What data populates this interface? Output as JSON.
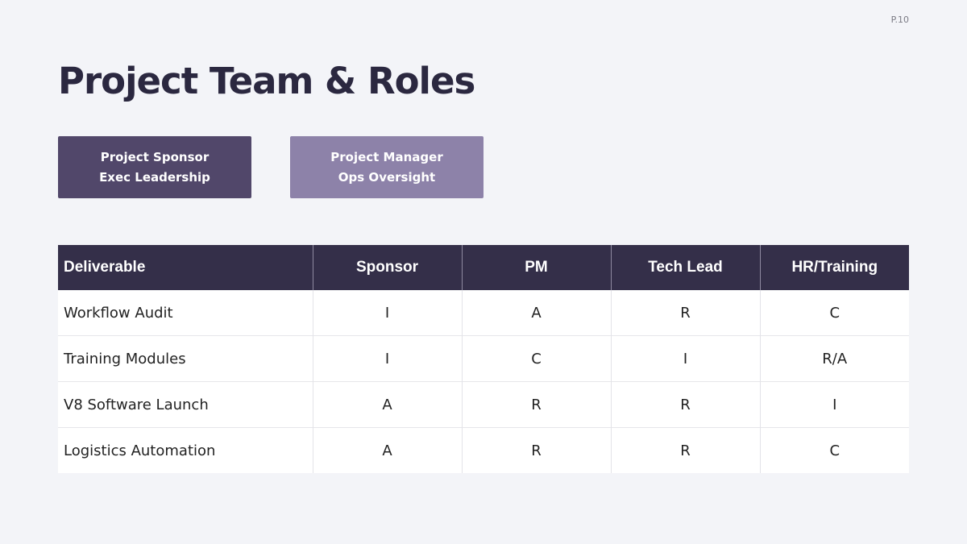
{
  "slide": {
    "page_number": "P.10",
    "title": "Project Team & Roles"
  },
  "roles": [
    {
      "line1": "Project Sponsor",
      "line2": "Exec Leadership",
      "color": "#51476a"
    },
    {
      "line1": "Project Manager",
      "line2": "Ops Oversight",
      "color": "#8d82a9"
    }
  ],
  "table": {
    "headers": [
      "Deliverable",
      "Sponsor",
      "PM",
      "Tech Lead",
      "HR/Training"
    ],
    "rows": [
      [
        "Workflow Audit",
        "I",
        "A",
        "R",
        "C"
      ],
      [
        "Training Modules",
        "I",
        "C",
        "I",
        "R/A"
      ],
      [
        "V8 Software Launch",
        "A",
        "R",
        "R",
        "I"
      ],
      [
        "Logistics Automation",
        "A",
        "R",
        "R",
        "C"
      ]
    ],
    "header_color": "#342f49"
  }
}
